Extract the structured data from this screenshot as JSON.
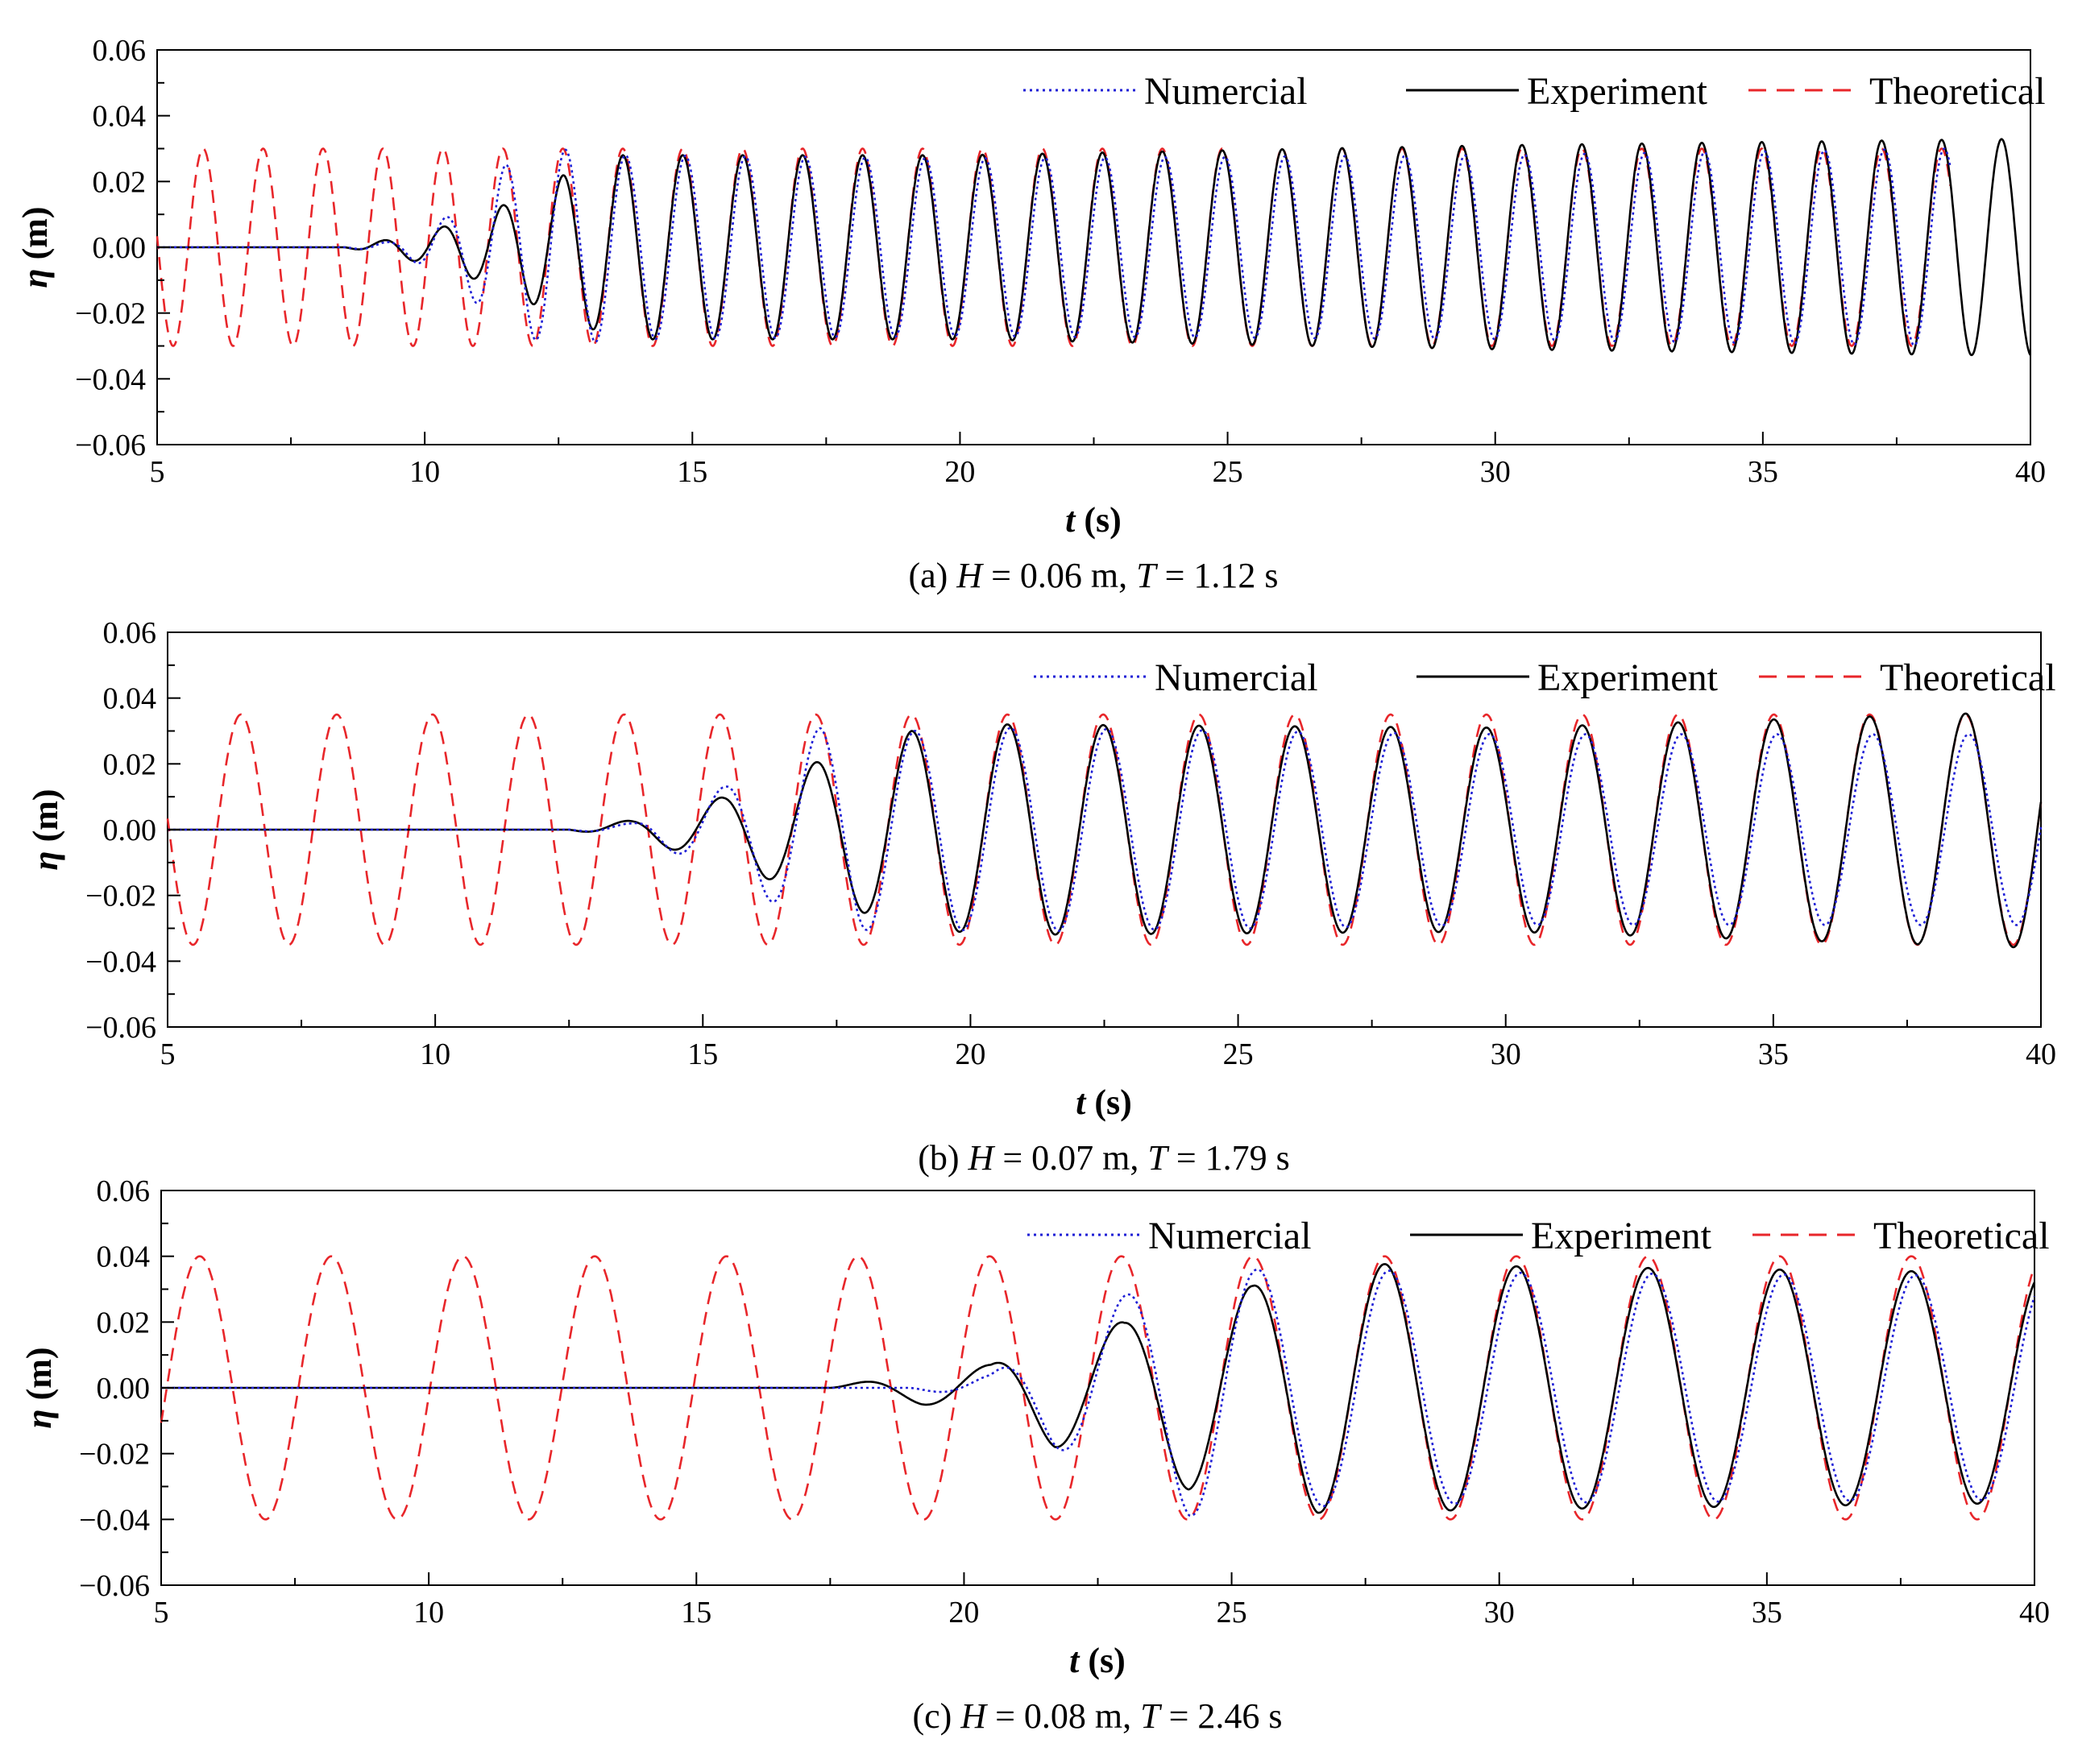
{
  "chart_data": [
    {
      "type": "line",
      "caption": {
        "prefix": "(a) ",
        "h_sym": "H",
        "h_text": " = 0.06 m, ",
        "t_sym": "T",
        "t_text": " = 1.12 s"
      },
      "xlabel": {
        "sym": "t",
        "unit": " (s)"
      },
      "ylabel": {
        "sym": "η",
        "unit": " (m)"
      },
      "xlim": [
        5,
        40
      ],
      "ylim": [
        -0.06,
        0.06
      ],
      "x_ticks": [
        "5",
        "10",
        "15",
        "20",
        "25",
        "30",
        "35",
        "40"
      ],
      "y_ticks": [
        "0.06",
        "0.04",
        "0.02",
        "0.00",
        "−0.02",
        "−0.04",
        "−0.06"
      ],
      "period": 1.12,
      "theory_amp": 0.03,
      "numerical_phase_lag": 0.05,
      "experiment_peak_amp": 0.0325,
      "envelope": [
        [
          5,
          0
        ],
        [
          8.5,
          0
        ],
        [
          9.2,
          0.002
        ],
        [
          10.3,
          0.006
        ],
        [
          11.5,
          0.013
        ],
        [
          12.6,
          0.022
        ],
        [
          13.7,
          0.028
        ],
        [
          20,
          0.028
        ],
        [
          30,
          0.031
        ],
        [
          40,
          0.033
        ]
      ],
      "numerical_envelope": [
        [
          5,
          0
        ],
        [
          8.5,
          0
        ],
        [
          9.5,
          0.002
        ],
        [
          10.5,
          0.01
        ],
        [
          11.5,
          0.025
        ],
        [
          12.4,
          0.03
        ],
        [
          13.7,
          0.028
        ],
        [
          20,
          0.027
        ],
        [
          30,
          0.028
        ],
        [
          38.5,
          0.03
        ]
      ],
      "numerical_end": 38.5,
      "experiment_end": 40,
      "theoretical_end": 38.5,
      "legend": [
        "Numercial",
        "Experiment",
        "Theoretical"
      ],
      "series_colors": {
        "numerical": "#1f1fd6",
        "experiment": "#000000",
        "theoretical": "#e8262a"
      }
    },
    {
      "type": "line",
      "caption": {
        "prefix": "(b) ",
        "h_sym": "H",
        "h_text": " = 0.07 m, ",
        "t_sym": "T",
        "t_text": " = 1.79 s"
      },
      "xlabel": {
        "sym": "t",
        "unit": " (s)"
      },
      "ylabel": {
        "sym": "η",
        "unit": " (m)"
      },
      "xlim": [
        5,
        40
      ],
      "ylim": [
        -0.06,
        0.06
      ],
      "x_ticks": [
        "5",
        "10",
        "15",
        "20",
        "25",
        "30",
        "35",
        "40"
      ],
      "y_ticks": [
        "0.06",
        "0.04",
        "0.02",
        "0.00",
        "−0.02",
        "−0.04",
        "−0.06"
      ],
      "period": 1.79,
      "theory_amp": 0.035,
      "numerical_phase_lag": 0.06,
      "experiment_peak_amp": 0.035,
      "envelope": [
        [
          5,
          0
        ],
        [
          12.5,
          0
        ],
        [
          13.7,
          0.003
        ],
        [
          15.4,
          0.01
        ],
        [
          17.2,
          0.021
        ],
        [
          18.9,
          0.03
        ],
        [
          20.6,
          0.032
        ],
        [
          30,
          0.031
        ],
        [
          40,
          0.036
        ]
      ],
      "numerical_envelope": [
        [
          5,
          0
        ],
        [
          12.5,
          0
        ],
        [
          13.7,
          0.002
        ],
        [
          15.4,
          0.013
        ],
        [
          17.2,
          0.031
        ],
        [
          18.9,
          0.03
        ],
        [
          20.6,
          0.031
        ],
        [
          30,
          0.029
        ],
        [
          40,
          0.029
        ]
      ],
      "numerical_end": 40,
      "experiment_end": 40,
      "theoretical_end": 40,
      "legend": [
        "Numercial",
        "Experiment",
        "Theoretical"
      ],
      "series_colors": {
        "numerical": "#1f1fd6",
        "experiment": "#000000",
        "theoretical": "#e8262a"
      }
    },
    {
      "type": "line",
      "caption": {
        "prefix": "(c) ",
        "h_sym": "H",
        "h_text": " = 0.08 m, ",
        "t_sym": "T",
        "t_text": " = 2.46 s"
      },
      "xlabel": {
        "sym": "t",
        "unit": " (s)"
      },
      "ylabel": {
        "sym": "η",
        "unit": " (m)"
      },
      "xlim": [
        5,
        40
      ],
      "ylim": [
        -0.06,
        0.06
      ],
      "x_ticks": [
        "5",
        "10",
        "15",
        "20",
        "25",
        "30",
        "35",
        "40"
      ],
      "y_ticks": [
        "0.06",
        "0.04",
        "0.02",
        "0.00",
        "−0.02",
        "−0.04",
        "−0.06"
      ],
      "period": 2.46,
      "theory_amp": 0.04,
      "numerical_phase_lag": 0.08,
      "experiment_peak_amp": 0.038,
      "envelope": [
        [
          5,
          0
        ],
        [
          17.5,
          0
        ],
        [
          19.2,
          0.005
        ],
        [
          20.5,
          0.007
        ],
        [
          21.7,
          0.018
        ],
        [
          23,
          0.02
        ],
        [
          24.2,
          0.031
        ],
        [
          25.4,
          0.031
        ],
        [
          26.6,
          0.038
        ],
        [
          30,
          0.037
        ],
        [
          40,
          0.035
        ]
      ],
      "numerical_envelope": [
        [
          5,
          0
        ],
        [
          19,
          0
        ],
        [
          20.5,
          0.004
        ],
        [
          21.7,
          0.018
        ],
        [
          23,
          0.028
        ],
        [
          24.2,
          0.039
        ],
        [
          25.4,
          0.036
        ],
        [
          26.6,
          0.036
        ],
        [
          30,
          0.035
        ],
        [
          40,
          0.034
        ]
      ],
      "numerical_end": 40,
      "experiment_end": 40,
      "theoretical_end": 40,
      "legend": [
        "Numercial",
        "Experiment",
        "Theoretical"
      ],
      "series_colors": {
        "numerical": "#1f1fd6",
        "experiment": "#000000",
        "theoretical": "#e8262a"
      }
    }
  ]
}
